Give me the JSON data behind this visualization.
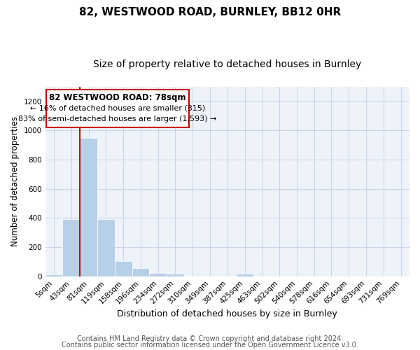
{
  "title1": "82, WESTWOOD ROAD, BURNLEY, BB12 0HR",
  "title2": "Size of property relative to detached houses in Burnley",
  "xlabel": "Distribution of detached houses by size in Burnley",
  "ylabel": "Number of detached properties",
  "footer1": "Contains HM Land Registry data © Crown copyright and database right 2024.",
  "footer2": "Contains public sector information licensed under the Open Government Licence v3.0.",
  "annotation_line1": "82 WESTWOOD ROAD: 78sqm",
  "annotation_line2": "← 16% of detached houses are smaller (315)",
  "annotation_line3": "83% of semi-detached houses are larger (1,593) →",
  "bar_color": "#b8cfe8",
  "bar_edge_color": "#ffffff",
  "highlight_line_color": "#cc0000",
  "annotation_box_edgecolor": "#cc0000",
  "grid_color": "#c8d4e8",
  "background_color": "#eef2f9",
  "categories": [
    "5sqm",
    "43sqm",
    "81sqm",
    "119sqm",
    "158sqm",
    "196sqm",
    "234sqm",
    "272sqm",
    "310sqm",
    "349sqm",
    "387sqm",
    "425sqm",
    "463sqm",
    "502sqm",
    "540sqm",
    "578sqm",
    "616sqm",
    "654sqm",
    "693sqm",
    "731sqm",
    "769sqm"
  ],
  "values": [
    15,
    390,
    950,
    390,
    105,
    55,
    25,
    20,
    0,
    0,
    0,
    20,
    0,
    0,
    0,
    0,
    0,
    0,
    0,
    0,
    0
  ],
  "ylim": [
    0,
    1300
  ],
  "yticks": [
    0,
    200,
    400,
    600,
    800,
    1000,
    1200
  ],
  "property_bar_index": 1.5,
  "title1_fontsize": 11,
  "title2_fontsize": 10,
  "annotation_fontsize": 8,
  "footer_fontsize": 7,
  "tick_fontsize": 7.5,
  "ylabel_fontsize": 8.5,
  "xlabel_fontsize": 9
}
